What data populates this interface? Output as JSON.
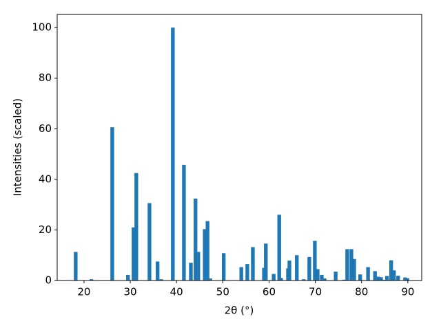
{
  "chart_data": {
    "type": "bar",
    "xlabel": "2θ (°)",
    "ylabel": "Intensities (scaled)",
    "x": [
      18.2,
      21.6,
      26.1,
      29.5,
      30.7,
      31.3,
      34.15,
      35.9,
      36.7,
      39.2,
      41.6,
      43.1,
      44.1,
      44.7,
      46.1,
      46.7,
      47.3,
      50.2,
      54.0,
      55.3,
      56.5,
      58.9,
      59.3,
      61.0,
      62.2,
      62.6,
      64.1,
      64.4,
      66.0,
      67.5,
      68.7,
      69.9,
      70.5,
      71.4,
      72.0,
      74.4,
      76.2,
      76.9,
      77.8,
      78.4,
      79.7,
      81.4,
      82.9,
      83.6,
      84.2,
      84.8,
      85.5,
      86.4,
      87.0,
      87.9,
      89.4,
      89.9
    ],
    "values": [
      11.3,
      0.5,
      60.6,
      2.2,
      21,
      42.5,
      30.6,
      7.5,
      0.5,
      100,
      45.7,
      7,
      32.4,
      11.3,
      20.3,
      23.5,
      0.8,
      10.8,
      5.3,
      6.5,
      13.2,
      5,
      14.6,
      2.6,
      26,
      1,
      4.8,
      7.9,
      10,
      0.5,
      9.3,
      15.7,
      4.5,
      2.2,
      0.8,
      3.5,
      0.3,
      12.4,
      12.4,
      8.5,
      2.4,
      5.3,
      3.7,
      1.5,
      1.3,
      0.3,
      1.8,
      8,
      4,
      1.9,
      1.2,
      0.9
    ],
    "color": "#1f77b4",
    "bar_width": 0.8,
    "xlim": [
      14.2,
      93.0
    ],
    "ylim": [
      0,
      105.2
    ],
    "xticks": [
      20,
      30,
      40,
      50,
      60,
      70,
      80,
      90
    ],
    "yticks": [
      0,
      20,
      40,
      60,
      80,
      100
    ],
    "grid": false
  }
}
